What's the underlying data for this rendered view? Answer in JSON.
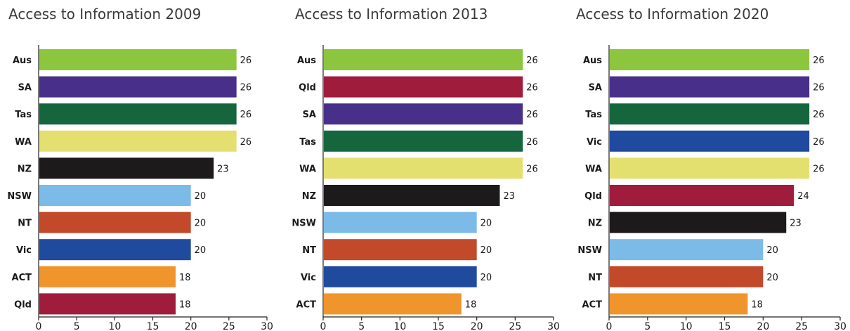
{
  "colors": {
    "Aus": "#8cc63f",
    "SA": "#482f8a",
    "Tas": "#15663d",
    "WA": "#e4e070",
    "NZ": "#1c1a1b",
    "NSW": "#7cbbe8",
    "NT": "#c2492a",
    "Vic": "#1f4a9e",
    "ACT": "#f0952c",
    "Qld": "#a01c3c"
  },
  "chart_data": [
    {
      "type": "bar",
      "orientation": "horizontal",
      "title": "Access to Information 2009",
      "categories": [
        "Aus",
        "SA",
        "Tas",
        "WA",
        "NZ",
        "NSW",
        "NT",
        "Vic",
        "ACT",
        "Qld"
      ],
      "values": [
        26,
        26,
        26,
        26,
        23,
        20,
        20,
        20,
        18,
        18
      ],
      "xlim": [
        0,
        30
      ],
      "xticks": [
        "0",
        "5",
        "10",
        "15",
        "20",
        "25",
        "30"
      ],
      "grid": false
    },
    {
      "type": "bar",
      "orientation": "horizontal",
      "title": "Access to Information 2013",
      "categories": [
        "Aus",
        "Qld",
        "SA",
        "Tas",
        "WA",
        "NZ",
        "NSW",
        "NT",
        "Vic",
        "ACT"
      ],
      "values": [
        26,
        26,
        26,
        26,
        26,
        23,
        20,
        20,
        20,
        18
      ],
      "xlim": [
        0,
        30
      ],
      "xticks": [
        "0",
        "5",
        "10",
        "15",
        "20",
        "25",
        "30"
      ],
      "grid": false
    },
    {
      "type": "bar",
      "orientation": "horizontal",
      "title": "Access to Information 2020",
      "categories": [
        "Aus",
        "SA",
        "Tas",
        "Vic",
        "WA",
        "Qld",
        "NZ",
        "NSW",
        "NT",
        "ACT"
      ],
      "values": [
        26,
        26,
        26,
        26,
        26,
        24,
        23,
        20,
        20,
        18
      ],
      "xlim": [
        0,
        30
      ],
      "xticks": [
        "0",
        "5",
        "10",
        "15",
        "20",
        "25",
        "30"
      ],
      "grid": false
    }
  ]
}
